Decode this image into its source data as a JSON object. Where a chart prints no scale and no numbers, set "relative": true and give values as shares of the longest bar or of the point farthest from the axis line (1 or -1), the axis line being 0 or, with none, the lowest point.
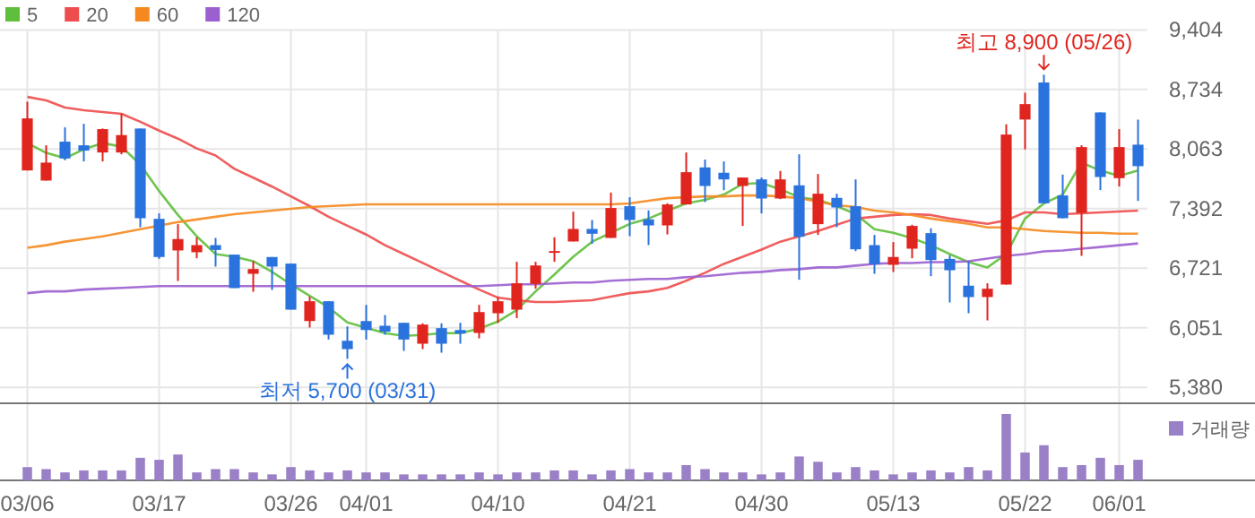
{
  "chart_data": [
    {
      "type": "candlestick",
      "categories": [
        "03/06",
        null,
        null,
        null,
        null,
        null,
        null,
        "03/17",
        null,
        null,
        null,
        null,
        null,
        null,
        "03/26",
        null,
        null,
        null,
        "04/01",
        null,
        null,
        null,
        null,
        null,
        null,
        "04/10",
        null,
        null,
        null,
        null,
        null,
        null,
        "04/21",
        null,
        null,
        null,
        null,
        null,
        null,
        "04/30",
        null,
        null,
        null,
        null,
        null,
        null,
        "05/13",
        null,
        null,
        null,
        null,
        null,
        null,
        "05/22",
        null,
        null,
        null,
        null,
        "06/01",
        null
      ],
      "ohlc": [
        [
          7822,
          8596,
          7822,
          8408
        ],
        [
          7708,
          8105,
          7708,
          7910
        ],
        [
          8146,
          8307,
          7937,
          7957
        ],
        [
          8105,
          8347,
          7923,
          8045
        ],
        [
          8024,
          8294,
          7923,
          8287
        ],
        [
          8024,
          8462,
          8004,
          8220
        ],
        [
          8294,
          8294,
          7183,
          7284
        ],
        [
          7277,
          7338,
          6826,
          6847
        ],
        [
          6921,
          7217,
          6577,
          7049
        ],
        [
          6901,
          7069,
          6833,
          6981
        ],
        [
          6981,
          7062,
          6739,
          6927
        ],
        [
          6874,
          6874,
          6497,
          6497
        ],
        [
          6658,
          6800,
          6456,
          6712
        ],
        [
          6847,
          6847,
          6476,
          6739
        ],
        [
          6773,
          6773,
          6254,
          6254
        ],
        [
          6126,
          6402,
          6053,
          6349
        ],
        [
          6349,
          6349,
          5918,
          5972
        ],
        [
          5904,
          6066,
          5700,
          5810
        ],
        [
          6126,
          6308,
          5918,
          6025
        ],
        [
          6073,
          6194,
          5972,
          6006
        ],
        [
          6106,
          6106,
          5790,
          5918
        ],
        [
          5871,
          6100,
          5810,
          6086
        ],
        [
          6046,
          6100,
          5770,
          5871
        ],
        [
          6025,
          6106,
          5871,
          5985
        ],
        [
          5992,
          6308,
          5931,
          6227
        ],
        [
          6214,
          6396,
          6106,
          6349
        ],
        [
          6254,
          6793,
          6160,
          6551
        ],
        [
          6544,
          6793,
          6490,
          6752
        ],
        [
          6894,
          7069,
          6793,
          6914
        ],
        [
          7022,
          7358,
          7022,
          7163
        ],
        [
          7163,
          7264,
          6995,
          7109
        ],
        [
          7062,
          7573,
          7062,
          7399
        ],
        [
          7419,
          7520,
          7082,
          7264
        ],
        [
          7271,
          7372,
          6981,
          7203
        ],
        [
          7203,
          7452,
          7102,
          7439
        ],
        [
          7439,
          8024,
          7439,
          7802
        ],
        [
          7856,
          7944,
          7466,
          7647
        ],
        [
          7796,
          7923,
          7600,
          7721
        ],
        [
          7647,
          7742,
          7197,
          7742
        ],
        [
          7721,
          7742,
          7338,
          7506
        ],
        [
          7506,
          7816,
          7499,
          7721
        ],
        [
          7654,
          8004,
          6591,
          7075
        ],
        [
          7217,
          7782,
          7096,
          7560
        ],
        [
          7513,
          7560,
          7183,
          7405
        ],
        [
          7419,
          7721,
          6914,
          6934
        ],
        [
          6981,
          7096,
          6658,
          6766
        ],
        [
          6759,
          7015,
          6678,
          6847
        ],
        [
          6941,
          7210,
          6833,
          7197
        ],
        [
          7116,
          7170,
          6631,
          6813
        ],
        [
          6826,
          6867,
          6335,
          6698
        ],
        [
          6524,
          6800,
          6214,
          6396
        ],
        [
          6396,
          6551,
          6133,
          6490
        ],
        [
          6537,
          8341,
          6537,
          8226
        ],
        [
          8395,
          8697,
          8058,
          8569
        ],
        [
          8812,
          8900,
          7452,
          7452
        ],
        [
          7540,
          7775,
          7284,
          7284
        ],
        [
          7345,
          8105,
          6860,
          8085
        ],
        [
          8475,
          8475,
          7600,
          7748
        ],
        [
          7735,
          8287,
          7641,
          8085
        ],
        [
          8112,
          8394,
          7479,
          7870
        ]
      ],
      "colors": [
        "#e0251f",
        "#e0251f",
        "#2a72dd",
        "#2a72dd",
        "#e0251f",
        "#e0251f",
        "#2a72dd",
        "#2a72dd",
        "#e0251f",
        "#e0251f",
        "#2a72dd",
        "#2a72dd",
        "#e0251f",
        "#2a72dd",
        "#2a72dd",
        "#e0251f",
        "#2a72dd",
        "#2a72dd",
        "#2a72dd",
        "#2a72dd",
        "#2a72dd",
        "#e0251f",
        "#2a72dd",
        "#2a72dd",
        "#e0251f",
        "#e0251f",
        "#e0251f",
        "#e0251f",
        "#e0251f",
        "#e0251f",
        "#2a72dd",
        "#e0251f",
        "#2a72dd",
        "#2a72dd",
        "#e0251f",
        "#e0251f",
        "#2a72dd",
        "#2a72dd",
        "#e0251f",
        "#2a72dd",
        "#e0251f",
        "#2a72dd",
        "#e0251f",
        "#2a72dd",
        "#2a72dd",
        "#2a72dd",
        "#e0251f",
        "#e0251f",
        "#2a72dd",
        "#2a72dd",
        "#2a72dd",
        "#e0251f",
        "#e0251f",
        "#e0251f",
        "#2a72dd",
        "#2a72dd",
        "#e0251f",
        "#2a72dd",
        "#e0251f",
        "#2a72dd"
      ],
      "series": [
        {
          "type": "line",
          "name": "5",
          "color": "#5fbf3c",
          "values": [
            8130,
            8020,
            7960,
            8060,
            8130,
            8090,
            7890,
            7590,
            7320,
            7080,
            6880,
            6850,
            6800,
            6680,
            6540,
            6410,
            6280,
            6110,
            6050,
            5990,
            5960,
            5970,
            5990,
            5990,
            6040,
            6120,
            6250,
            6460,
            6650,
            6850,
            7020,
            7120,
            7220,
            7280,
            7370,
            7450,
            7490,
            7550,
            7670,
            7680,
            7610,
            7520,
            7490,
            7420,
            7330,
            7160,
            7120,
            7060,
            6980,
            6880,
            6790,
            6730,
            6880,
            7280,
            7450,
            7550,
            7910,
            7820,
            7760,
            7820
          ]
        },
        {
          "type": "line",
          "name": "20",
          "color": "#ee4d4d",
          "values": [
            8650,
            8610,
            8530,
            8500,
            8480,
            8460,
            8370,
            8270,
            8180,
            8070,
            7990,
            7840,
            7740,
            7640,
            7530,
            7420,
            7300,
            7200,
            7100,
            6980,
            6880,
            6780,
            6680,
            6580,
            6480,
            6390,
            6360,
            6340,
            6340,
            6350,
            6360,
            6400,
            6440,
            6460,
            6500,
            6580,
            6670,
            6770,
            6850,
            6930,
            7020,
            7080,
            7140,
            7210,
            7280,
            7300,
            7320,
            7330,
            7320,
            7280,
            7250,
            7220,
            7260,
            7350,
            7350,
            7330,
            7340,
            7350,
            7360,
            7370
          ]
        },
        {
          "type": "line",
          "name": "60",
          "color": "#f5891f",
          "values": [
            6950,
            6980,
            7020,
            7050,
            7080,
            7120,
            7160,
            7200,
            7240,
            7270,
            7300,
            7330,
            7350,
            7370,
            7390,
            7410,
            7420,
            7430,
            7440,
            7440,
            7440,
            7440,
            7440,
            7440,
            7440,
            7440,
            7440,
            7440,
            7440,
            7440,
            7440,
            7440,
            7450,
            7480,
            7510,
            7520,
            7530,
            7530,
            7540,
            7540,
            7530,
            7510,
            7470,
            7430,
            7410,
            7370,
            7350,
            7320,
            7280,
            7250,
            7220,
            7180,
            7180,
            7160,
            7140,
            7130,
            7120,
            7120,
            7110,
            7110
          ]
        },
        {
          "type": "line",
          "name": "120",
          "color": "#9b5fd0",
          "values": [
            6440,
            6460,
            6460,
            6480,
            6490,
            6500,
            6510,
            6520,
            6520,
            6520,
            6520,
            6520,
            6520,
            6520,
            6520,
            6520,
            6520,
            6520,
            6520,
            6520,
            6520,
            6520,
            6520,
            6520,
            6520,
            6530,
            6540,
            6540,
            6550,
            6560,
            6560,
            6580,
            6590,
            6600,
            6600,
            6620,
            6630,
            6650,
            6670,
            6680,
            6700,
            6710,
            6730,
            6730,
            6750,
            6770,
            6780,
            6780,
            6790,
            6790,
            6800,
            6830,
            6860,
            6880,
            6910,
            6920,
            6940,
            6960,
            6980,
            7000
          ]
        }
      ],
      "ylim": [
        5200,
        9404
      ],
      "yticks": [
        {
          "value": 5380,
          "label": "5,380"
        },
        {
          "value": 6051,
          "label": "6,051"
        },
        {
          "value": 6721,
          "label": "6,721"
        },
        {
          "value": 7392,
          "label": "7,392"
        },
        {
          "value": 8063,
          "label": "8,063"
        },
        {
          "value": 8734,
          "label": "8,734"
        },
        {
          "value": 9404,
          "label": "9,404"
        }
      ],
      "grid": true,
      "legend": "top left",
      "annotations": [
        {
          "text": "최저 5,700 (03/31)",
          "y": 5700
        },
        {
          "text": "최고 8,900 (05/26)",
          "y": 8900
        }
      ]
    },
    {
      "type": "bar",
      "relative": true,
      "categories": [
        null,
        null,
        null,
        null,
        null,
        null,
        null,
        null,
        null,
        null,
        null,
        null,
        null,
        null,
        null,
        null,
        null,
        null,
        null,
        null,
        null,
        null,
        null,
        null,
        null,
        null,
        null,
        null,
        null,
        null,
        null,
        null,
        null,
        null,
        null,
        null,
        null,
        null,
        null,
        null,
        null,
        null,
        null,
        null,
        null,
        null,
        null,
        null,
        null,
        null,
        null,
        null,
        null,
        null,
        null,
        null,
        null,
        null,
        null,
        null
      ],
      "series": [
        {
          "name": "거래량",
          "color": "#9a80c6",
          "values": [
            0.2,
            0.17,
            0.12,
            0.15,
            0.15,
            0.15,
            0.34,
            0.31,
            0.39,
            0.12,
            0.17,
            0.17,
            0.12,
            0.09,
            0.2,
            0.15,
            0.12,
            0.15,
            0.12,
            0.12,
            0.09,
            0.09,
            0.09,
            0.09,
            0.12,
            0.09,
            0.12,
            0.12,
            0.15,
            0.15,
            0.09,
            0.15,
            0.17,
            0.12,
            0.12,
            0.23,
            0.17,
            0.12,
            0.12,
            0.09,
            0.12,
            0.36,
            0.28,
            0.12,
            0.2,
            0.15,
            0.09,
            0.12,
            0.15,
            0.12,
            0.2,
            0.15,
            1,
            0.42,
            0.53,
            0.2,
            0.23,
            0.34,
            0.23,
            0.31
          ]
        }
      ],
      "legend": "top right"
    }
  ]
}
